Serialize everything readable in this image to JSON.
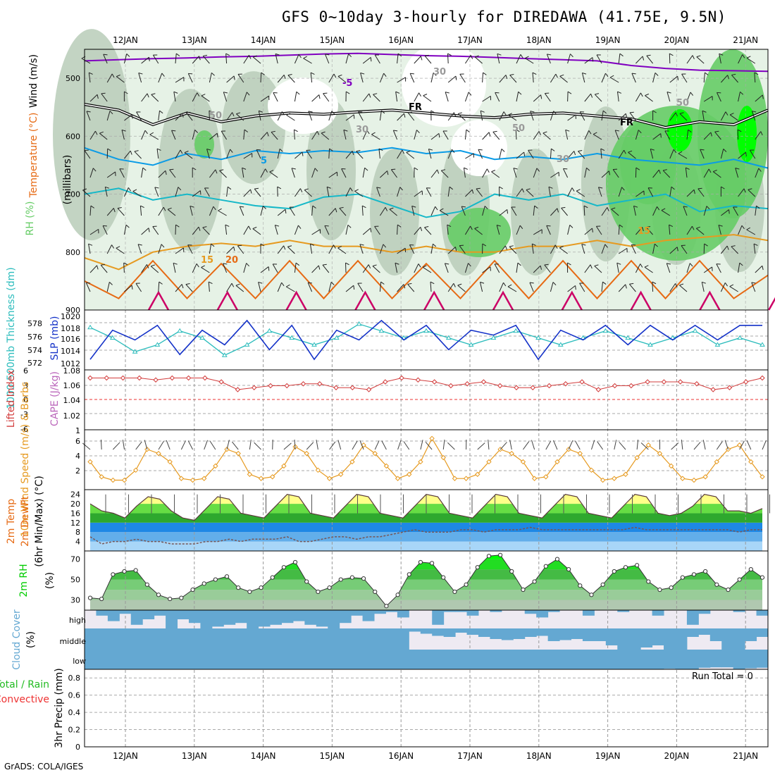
{
  "title": "GFS 0~10day 3-hourly for DIREDAWA (41.75E, 9.5N)",
  "footer": "GrADS: COLA/IGES",
  "run_total": "Run Total = 0",
  "colors": {
    "rh_light": "#e6f2e6",
    "rh_mid": "#b8ccb8",
    "rh_green": "#66cc66",
    "rh_bright": "#00ff00",
    "temp_purple": "#8000c0",
    "temp_blue": "#0a9be6",
    "temp_cyan": "#16b8c8",
    "temp_orange": "#e69a20",
    "temp_darkorange": "#e66a14",
    "temp_magenta": "#cc0066",
    "slp": "#1432c8",
    "thickness": "#2bbcbc",
    "cape": "#d23c3c",
    "wind10": "#e69a20",
    "rh2m": "#00cc00",
    "cloud": "#64a8d2"
  },
  "chart_data": [
    {
      "type": "area",
      "name": "upper-air",
      "ylabels": [
        "RH (%)",
        "Temperature (°C)",
        "Wind (m/s)",
        "(millibars)"
      ],
      "y_ticks": [
        "500",
        "600",
        "700",
        "800",
        "900"
      ],
      "ylim": [
        900,
        450
      ],
      "x_dates": [
        "12JAN",
        "13JAN",
        "14JAN",
        "15JAN",
        "16JAN",
        "17JAN",
        "18JAN",
        "19JAN",
        "20JAN",
        "21JAN"
      ],
      "contour_labels": [
        "-5",
        "FR",
        "FR",
        "5",
        "15",
        "20",
        "15",
        "30",
        "30",
        "50",
        "50",
        "50",
        "30"
      ],
      "isotherms": [
        {
          "label": "-5",
          "p": [
            470,
            468,
            466,
            465,
            463,
            462,
            460,
            458,
            457,
            459,
            461,
            462,
            464,
            466,
            468,
            470,
            478,
            483,
            486,
            487,
            488
          ]
        },
        {
          "label": "FR",
          "p": [
            545,
            555,
            580,
            560,
            575,
            565,
            560,
            562,
            558,
            555,
            560,
            565,
            568,
            562,
            560,
            565,
            570,
            585,
            575,
            580,
            555
          ]
        },
        {
          "label": "5",
          "p": [
            620,
            640,
            650,
            630,
            640,
            625,
            630,
            625,
            628,
            620,
            630,
            625,
            640,
            635,
            640,
            630,
            640,
            645,
            650,
            640,
            655
          ]
        },
        {
          "label": "10",
          "p": [
            700,
            690,
            710,
            700,
            710,
            720,
            725,
            705,
            700,
            720,
            740,
            730,
            700,
            710,
            700,
            720,
            710,
            700,
            730,
            720,
            725
          ]
        },
        {
          "label": "15",
          "p": [
            810,
            830,
            800,
            790,
            785,
            790,
            780,
            790,
            790,
            800,
            790,
            800,
            800,
            790,
            790,
            780,
            790,
            780,
            775,
            770,
            780
          ]
        },
        {
          "label": "20",
          "p": [
            850,
            880,
            815,
            880,
            820,
            880,
            815,
            880,
            815,
            880,
            820,
            880,
            815,
            880,
            815,
            880,
            815,
            880,
            815,
            880,
            840
          ]
        }
      ]
    },
    {
      "type": "line",
      "name": "slp-thickness",
      "ylabels": [
        "1000-500mb Thickness (dm)",
        "SLP (mb)"
      ],
      "y_ticks_left": [
        "572",
        "574",
        "576",
        "578"
      ],
      "y_ticks_right": [
        "1012",
        "1014",
        "1016",
        "1018",
        "1020"
      ],
      "series": [
        {
          "name": "SLP (mb)",
          "values": [
            1012,
            1018,
            1016,
            1019,
            1013,
            1018,
            1015,
            1020,
            1014,
            1019,
            1012,
            1018,
            1016,
            1020,
            1016,
            1019,
            1014,
            1018,
            1017,
            1019,
            1012,
            1018,
            1016,
            1019,
            1015,
            1019,
            1016,
            1019,
            1016,
            1019,
            1019
          ]
        },
        {
          "name": "1000-500mb Thickness (dm)",
          "values": [
            576.5,
            575,
            573,
            574,
            576,
            575,
            572.5,
            574,
            576,
            575,
            574,
            575,
            577,
            576,
            575,
            576,
            575,
            574,
            575,
            576,
            575,
            574,
            575,
            576,
            575,
            574,
            575,
            576,
            574,
            575,
            574
          ]
        }
      ]
    },
    {
      "type": "line",
      "name": "stability",
      "ylabels": [
        "Lifted Index",
        "CAPE (J/kg)"
      ],
      "y_ticks_left": [
        "-6",
        "-3",
        "0",
        "3",
        "6"
      ],
      "y_ticks_right": [
        "1",
        "1.02",
        "1.04",
        "1.06",
        "1.08"
      ],
      "series": [
        {
          "name": "Lifted Index",
          "values": [
            6,
            6,
            6,
            6,
            5.5,
            6,
            6,
            6,
            5,
            3,
            3.5,
            4,
            4,
            4.5,
            4.5,
            3.5,
            3.5,
            3,
            5,
            6,
            5.5,
            5,
            4,
            4.5,
            5,
            4,
            3.5,
            3.5,
            4,
            4.5,
            5,
            3,
            4,
            4,
            5,
            5,
            5,
            4.5,
            3,
            3.5,
            5,
            6
          ]
        }
      ]
    },
    {
      "type": "line",
      "name": "wind10m",
      "ylabels": [
        "10m Wind Speed (m/s) & Barbs"
      ],
      "y_ticks": [
        "2",
        "4",
        "6"
      ],
      "series": [
        {
          "name": "10m Wind Speed",
          "values": [
            3,
            1.2,
            0.8,
            0.8,
            2,
            4.5,
            4,
            3,
            1,
            0.8,
            1,
            2.5,
            4.5,
            4,
            1.5,
            1,
            1.2,
            2.5,
            4.8,
            4,
            2,
            1,
            1.5,
            3,
            5,
            4,
            2.5,
            1,
            1.5,
            3,
            5.8,
            3.5,
            1,
            1,
            1.5,
            3,
            4.5,
            4,
            3,
            1,
            1.2,
            3,
            4.5,
            4,
            2,
            0.8,
            1,
            1.5,
            3.5,
            5,
            4,
            2.5,
            1,
            0.8,
            1.2,
            3,
            4.5,
            5,
            3,
            1.2
          ]
        }
      ]
    },
    {
      "type": "area",
      "name": "temp-dewpt",
      "ylabels": [
        "2m Temp",
        "2m DewPt",
        "(6hr Min/Max) (°C)"
      ],
      "y_ticks": [
        "4",
        "8",
        "12",
        "16",
        "20",
        "24"
      ],
      "series": [
        {
          "name": "2m Temp",
          "values": [
            20,
            17,
            16,
            14,
            19,
            23,
            22,
            17,
            14,
            13,
            18,
            23,
            22,
            16,
            15,
            14,
            19,
            24,
            23,
            16,
            15,
            14,
            19,
            24,
            23,
            16,
            15,
            14,
            19,
            24,
            23,
            16,
            15,
            14,
            19,
            24,
            23,
            16,
            15,
            14,
            19,
            24,
            23,
            16,
            15,
            14,
            19,
            24,
            23,
            16,
            15,
            16,
            19,
            24,
            23,
            17,
            17,
            16,
            18
          ]
        },
        {
          "name": "2m DewPt",
          "values": [
            6,
            3,
            4,
            4,
            5,
            4,
            4,
            3,
            3,
            3,
            4,
            4,
            5,
            4,
            5,
            5,
            5,
            6,
            4,
            4,
            5,
            6,
            6,
            5,
            6,
            6,
            7,
            8,
            9,
            8,
            8,
            8,
            9,
            9,
            8,
            9,
            9,
            9,
            10,
            9,
            9,
            9,
            9,
            9,
            9,
            9,
            9,
            10,
            9,
            9,
            9,
            9,
            9,
            9,
            9,
            9,
            8,
            9,
            9
          ]
        }
      ]
    },
    {
      "type": "area",
      "name": "rh2m",
      "ylabels": [
        "2m RH",
        "(%)"
      ],
      "y_ticks": [
        "30",
        "50",
        "70"
      ],
      "series": [
        {
          "name": "2m RH",
          "values": [
            32,
            31,
            55,
            58,
            59,
            45,
            35,
            31,
            32,
            40,
            46,
            50,
            53,
            42,
            38,
            42,
            52,
            62,
            67,
            48,
            38,
            42,
            50,
            52,
            51,
            38,
            24,
            35,
            55,
            67,
            66,
            52,
            38,
            45,
            62,
            73,
            74,
            58,
            40,
            48,
            63,
            70,
            60,
            44,
            35,
            45,
            58,
            62,
            64,
            48,
            40,
            42,
            52,
            55,
            58,
            45,
            40,
            50,
            60,
            52
          ]
        }
      ]
    },
    {
      "type": "bar",
      "name": "cloud-cover",
      "ylabels": [
        "Cloud Cover",
        "(%)"
      ],
      "y_ticks": [
        "high",
        "middle",
        "low"
      ],
      "series": [
        {
          "name": "high",
          "values": [
            0,
            30,
            60,
            20,
            80,
            50,
            30,
            100,
            50,
            70,
            100,
            90,
            80,
            70,
            100,
            90,
            80,
            70,
            60,
            80,
            90,
            100,
            70,
            30,
            60,
            20,
            10,
            40,
            0,
            0,
            80,
            10,
            10,
            30,
            0,
            10,
            0,
            0,
            20,
            40,
            10,
            0,
            0,
            30,
            0,
            0,
            10,
            0,
            0,
            30,
            0,
            0,
            80,
            20,
            0,
            0,
            10,
            0,
            30
          ]
        },
        {
          "name": "middle",
          "values": [
            100,
            100,
            100,
            100,
            100,
            100,
            100,
            100,
            100,
            100,
            100,
            100,
            100,
            100,
            100,
            100,
            100,
            100,
            100,
            100,
            100,
            100,
            100,
            100,
            100,
            100,
            100,
            100,
            15,
            25,
            35,
            40,
            20,
            30,
            40,
            50,
            55,
            50,
            40,
            35,
            60,
            55,
            50,
            60,
            60,
            80,
            100,
            100,
            90,
            80,
            100,
            100,
            40,
            30,
            60,
            100,
            100,
            60,
            40
          ]
        },
        {
          "name": "low",
          "values": [
            100,
            100,
            100,
            100,
            100,
            100,
            100,
            100,
            100,
            100,
            100,
            100,
            100,
            100,
            100,
            100,
            100,
            100,
            100,
            100,
            100,
            100,
            100,
            100,
            100,
            100,
            100,
            100,
            100,
            100,
            100,
            100,
            100,
            100,
            100,
            100,
            100,
            100,
            100,
            100,
            100,
            100,
            100,
            100,
            100,
            100,
            100,
            100,
            100,
            100,
            97,
            100,
            100,
            92,
            90,
            90,
            100,
            95,
            92
          ]
        }
      ]
    },
    {
      "type": "bar",
      "name": "precip",
      "ylabels": [
        "Total / Rain",
        "Convective",
        "3hr Precip (mm)"
      ],
      "y_ticks": [
        "0",
        "0.2",
        "0.4",
        "0.6",
        "0.8"
      ],
      "ylim": [
        0,
        0.9
      ],
      "series": [
        {
          "name": "3hr Precip",
          "values": [
            0,
            0,
            0,
            0,
            0,
            0,
            0,
            0,
            0,
            0
          ]
        }
      ]
    }
  ]
}
